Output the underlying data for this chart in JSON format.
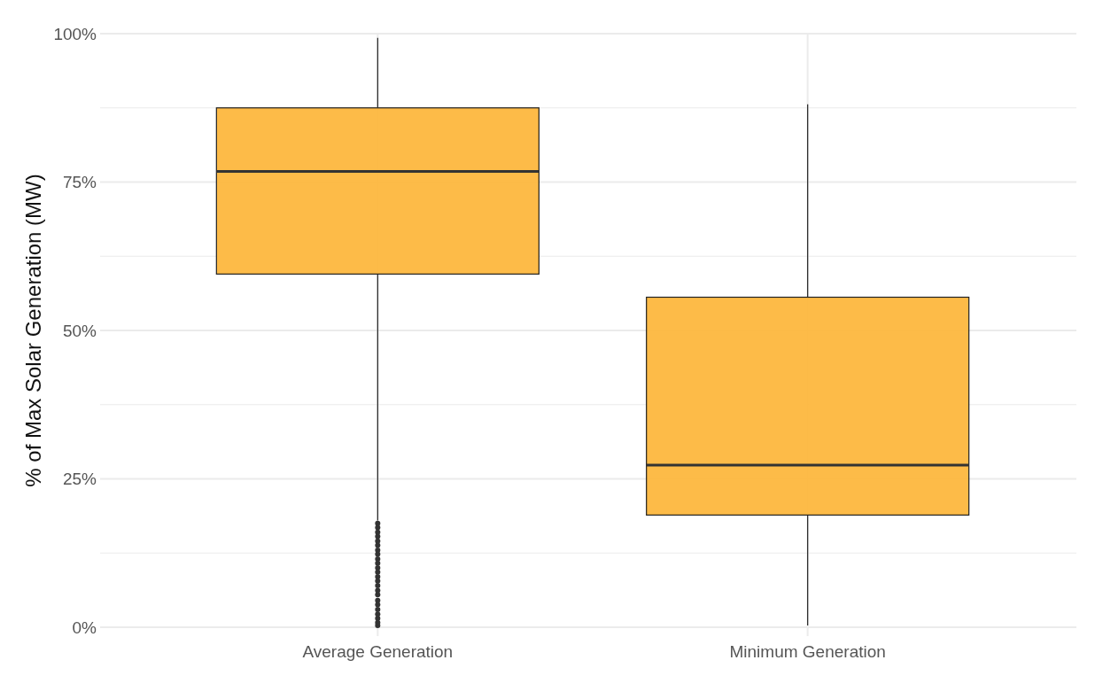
{
  "chart_data": {
    "type": "box",
    "ylabel": "% of Max Solar Generation (MW)",
    "categories": [
      "Average Generation",
      "Minimum Generation"
    ],
    "ylim": [
      0,
      100
    ],
    "yticks": [
      {
        "value": 0,
        "label": "0%"
      },
      {
        "value": 12.5,
        "label": null
      },
      {
        "value": 25,
        "label": "25%"
      },
      {
        "value": 37.5,
        "label": null
      },
      {
        "value": 50,
        "label": "50%"
      },
      {
        "value": 62.5,
        "label": null
      },
      {
        "value": 75,
        "label": "75%"
      },
      {
        "value": 87.5,
        "label": null
      },
      {
        "value": 100,
        "label": "100%"
      }
    ],
    "grid": true,
    "color": "#fdb73e",
    "boxes": [
      {
        "low": 18,
        "q1": 59.5,
        "median": 76.8,
        "q3": 87.5,
        "high": 99.3,
        "outliers": [
          0.3,
          0.8,
          1.5,
          2.2,
          3,
          3.8,
          4.5,
          5.5,
          6.2,
          7,
          7.8,
          8.5,
          9.3,
          10,
          10.8,
          11.5,
          12.3,
          13,
          13.8,
          14.5,
          15.3,
          16,
          16.8,
          17.5
        ]
      },
      {
        "low": 0.3,
        "q1": 18.9,
        "median": 27.3,
        "q3": 55.6,
        "high": 88.1
      }
    ]
  }
}
